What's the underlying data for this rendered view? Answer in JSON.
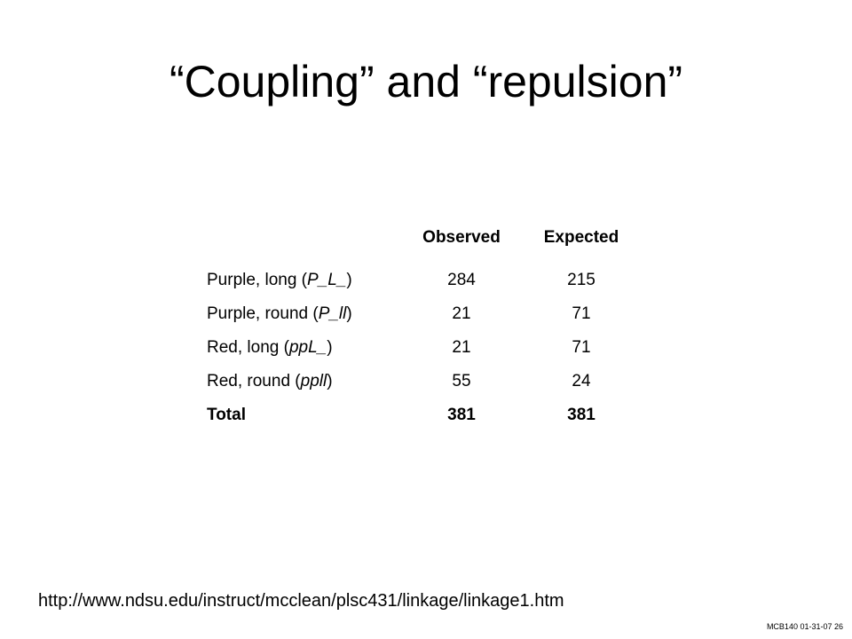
{
  "slide": {
    "title": "“Coupling” and “repulsion”",
    "table": {
      "header": [
        "Observed",
        "Expected"
      ],
      "rows": [
        {
          "label": [
            "Purple, long (",
            "P_L_",
            ")"
          ],
          "observed": 284,
          "expected": 215
        },
        {
          "label": [
            "Purple, round (",
            "P_ll",
            ")"
          ],
          "observed": 21,
          "expected": 71
        },
        {
          "label": [
            "Red, long (",
            "ppL_",
            ")"
          ],
          "observed": 21,
          "expected": 71
        },
        {
          "label": [
            "Red, round (",
            "ppll",
            ")"
          ],
          "observed": 55,
          "expected": 24
        }
      ],
      "total": {
        "label": "Total",
        "observed": 381,
        "expected": 381
      }
    },
    "source_url": "http://www.ndsu.edu/instruct/mcclean/plsc431/linkage/linkage1.htm",
    "footer": "MCB140 01-31-07 26"
  }
}
